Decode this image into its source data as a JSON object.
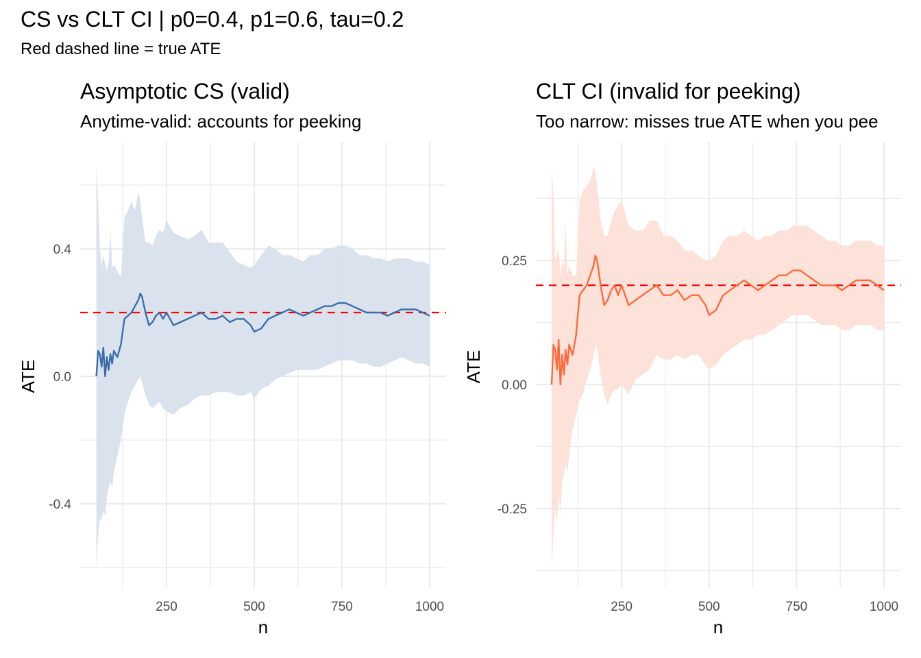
{
  "figure": {
    "title": "CS vs CLT CI | p0=0.4, p1=0.6, tau=0.2",
    "subtitle": "Red dashed line = true ATE"
  },
  "colors": {
    "cs_line": "#3b6ea8",
    "cs_band": "#d8e1ec",
    "clt_line": "#ff6a3d",
    "clt_band": "#fde0d8",
    "true_ate": "#ff0000",
    "grid": "#ebebeb"
  },
  "chart_data": [
    {
      "type": "area",
      "title": "Asymptotic CS (valid)",
      "subtitle": "Anytime-valid: accounts for peeking",
      "xlabel": "n",
      "ylabel": "ATE",
      "xlim": [
        0,
        1030
      ],
      "ylim": [
        -0.65,
        0.72
      ],
      "xticks": [
        250,
        500,
        750,
        1000
      ],
      "xtick_labels": [
        "250",
        "500",
        "750",
        "1000"
      ],
      "yticks": [
        -0.4,
        0.0,
        0.4
      ],
      "ytick_labels": [
        "-0.4",
        "0.0",
        "0.4"
      ],
      "minor_y": [
        -0.6,
        -0.2,
        0.2,
        0.6
      ],
      "minor_x": [
        125,
        375,
        625,
        875
      ],
      "true_ate": 0.2,
      "series": {
        "n": [
          50,
          55,
          60,
          65,
          70,
          75,
          80,
          85,
          90,
          95,
          100,
          110,
          120,
          130,
          140,
          150,
          160,
          170,
          175,
          180,
          190,
          200,
          210,
          220,
          230,
          240,
          250,
          270,
          290,
          310,
          330,
          350,
          370,
          390,
          410,
          430,
          450,
          470,
          490,
          500,
          520,
          540,
          560,
          580,
          600,
          620,
          640,
          660,
          680,
          700,
          720,
          740,
          760,
          780,
          800,
          820,
          840,
          860,
          880,
          900,
          920,
          940,
          960,
          980,
          1000
        ],
        "ate": [
          0.0,
          0.08,
          0.07,
          0.03,
          0.09,
          0.0,
          0.06,
          0.02,
          0.07,
          0.04,
          0.08,
          0.06,
          0.1,
          0.18,
          0.19,
          0.2,
          0.22,
          0.24,
          0.26,
          0.25,
          0.2,
          0.16,
          0.17,
          0.19,
          0.2,
          0.18,
          0.2,
          0.16,
          0.17,
          0.18,
          0.19,
          0.2,
          0.18,
          0.18,
          0.19,
          0.17,
          0.18,
          0.18,
          0.16,
          0.14,
          0.15,
          0.18,
          0.19,
          0.2,
          0.21,
          0.2,
          0.19,
          0.2,
          0.21,
          0.22,
          0.22,
          0.23,
          0.23,
          0.22,
          0.21,
          0.2,
          0.2,
          0.2,
          0.19,
          0.2,
          0.21,
          0.21,
          0.21,
          0.2,
          0.19
        ],
        "lower": [
          -0.6,
          -0.5,
          -0.45,
          -0.45,
          -0.42,
          -0.44,
          -0.38,
          -0.35,
          -0.33,
          -0.35,
          -0.3,
          -0.25,
          -0.2,
          -0.12,
          -0.08,
          -0.05,
          -0.03,
          -0.01,
          0.0,
          -0.02,
          -0.06,
          -0.09,
          -0.1,
          -0.09,
          -0.08,
          -0.1,
          -0.11,
          -0.12,
          -0.1,
          -0.09,
          -0.07,
          -0.06,
          -0.06,
          -0.05,
          -0.05,
          -0.05,
          -0.06,
          -0.06,
          -0.05,
          -0.07,
          -0.04,
          -0.03,
          -0.01,
          0.0,
          0.01,
          0.02,
          0.02,
          0.02,
          0.02,
          0.03,
          0.04,
          0.05,
          0.05,
          0.05,
          0.04,
          0.04,
          0.03,
          0.03,
          0.04,
          0.05,
          0.06,
          0.05,
          0.04,
          0.04,
          0.03
        ],
        "upper": [
          0.66,
          0.55,
          0.4,
          0.35,
          0.38,
          0.35,
          0.33,
          0.36,
          0.46,
          0.34,
          0.35,
          0.33,
          0.31,
          0.5,
          0.52,
          0.55,
          0.52,
          0.58,
          0.55,
          0.5,
          0.42,
          0.42,
          0.41,
          0.44,
          0.46,
          0.45,
          0.49,
          0.45,
          0.44,
          0.43,
          0.44,
          0.46,
          0.42,
          0.42,
          0.42,
          0.39,
          0.36,
          0.35,
          0.34,
          0.35,
          0.38,
          0.41,
          0.4,
          0.38,
          0.38,
          0.37,
          0.36,
          0.38,
          0.38,
          0.4,
          0.4,
          0.41,
          0.41,
          0.4,
          0.38,
          0.38,
          0.37,
          0.37,
          0.36,
          0.37,
          0.37,
          0.37,
          0.36,
          0.36,
          0.35
        ]
      }
    },
    {
      "type": "area",
      "title": "CLT CI (invalid for peeking)",
      "subtitle": "Too narrow: misses true ATE when you pee",
      "xlabel": "n",
      "ylabel": "ATE",
      "xlim": [
        0,
        1030
      ],
      "ylim": [
        -0.4,
        0.48
      ],
      "xticks": [
        250,
        500,
        750,
        1000
      ],
      "xtick_labels": [
        "250",
        "500",
        "750",
        "1000"
      ],
      "yticks": [
        -0.25,
        0.0,
        0.25
      ],
      "ytick_labels": [
        "-0.25",
        "0.00",
        "0.25"
      ],
      "minor_y": [
        -0.375,
        -0.125,
        0.125,
        0.375
      ],
      "minor_x": [
        125,
        375,
        625,
        875
      ],
      "true_ate": 0.2,
      "series": {
        "n": [
          50,
          55,
          60,
          65,
          70,
          75,
          80,
          85,
          90,
          95,
          100,
          110,
          120,
          130,
          140,
          150,
          160,
          170,
          175,
          180,
          190,
          200,
          210,
          220,
          230,
          240,
          250,
          270,
          290,
          310,
          330,
          350,
          370,
          390,
          410,
          430,
          450,
          470,
          490,
          500,
          520,
          540,
          560,
          580,
          600,
          620,
          640,
          660,
          680,
          700,
          720,
          740,
          760,
          780,
          800,
          820,
          840,
          860,
          880,
          900,
          920,
          940,
          960,
          980,
          1000
        ],
        "ate": [
          0.0,
          0.08,
          0.07,
          0.03,
          0.09,
          0.0,
          0.06,
          0.02,
          0.07,
          0.04,
          0.08,
          0.06,
          0.1,
          0.18,
          0.19,
          0.2,
          0.22,
          0.24,
          0.26,
          0.25,
          0.2,
          0.16,
          0.17,
          0.19,
          0.2,
          0.18,
          0.2,
          0.16,
          0.17,
          0.18,
          0.19,
          0.2,
          0.18,
          0.18,
          0.19,
          0.17,
          0.18,
          0.18,
          0.16,
          0.14,
          0.15,
          0.18,
          0.19,
          0.2,
          0.21,
          0.2,
          0.19,
          0.2,
          0.21,
          0.22,
          0.22,
          0.23,
          0.23,
          0.22,
          0.21,
          0.2,
          0.2,
          0.2,
          0.19,
          0.2,
          0.21,
          0.21,
          0.21,
          0.2,
          0.19
        ],
        "lower": [
          -0.37,
          -0.3,
          -0.25,
          -0.28,
          -0.22,
          -0.26,
          -0.2,
          -0.18,
          -0.16,
          -0.18,
          -0.14,
          -0.09,
          -0.06,
          -0.03,
          -0.02,
          0.01,
          0.03,
          0.06,
          0.08,
          0.07,
          0.02,
          -0.02,
          -0.04,
          -0.02,
          -0.01,
          -0.01,
          0.0,
          -0.02,
          0.01,
          0.02,
          0.03,
          0.06,
          0.05,
          0.05,
          0.06,
          0.05,
          0.06,
          0.06,
          0.04,
          0.03,
          0.04,
          0.06,
          0.07,
          0.08,
          0.09,
          0.09,
          0.1,
          0.1,
          0.11,
          0.12,
          0.13,
          0.14,
          0.14,
          0.14,
          0.13,
          0.12,
          0.12,
          0.12,
          0.11,
          0.11,
          0.12,
          0.12,
          0.12,
          0.11,
          0.11
        ],
        "upper": [
          0.44,
          0.38,
          0.25,
          0.26,
          0.28,
          0.22,
          0.25,
          0.24,
          0.33,
          0.22,
          0.24,
          0.22,
          0.22,
          0.37,
          0.39,
          0.4,
          0.41,
          0.44,
          0.43,
          0.4,
          0.33,
          0.3,
          0.3,
          0.33,
          0.35,
          0.36,
          0.37,
          0.32,
          0.31,
          0.31,
          0.33,
          0.33,
          0.3,
          0.3,
          0.29,
          0.27,
          0.27,
          0.26,
          0.25,
          0.25,
          0.26,
          0.29,
          0.3,
          0.3,
          0.31,
          0.3,
          0.29,
          0.3,
          0.3,
          0.31,
          0.31,
          0.32,
          0.32,
          0.32,
          0.31,
          0.3,
          0.29,
          0.29,
          0.28,
          0.28,
          0.29,
          0.29,
          0.29,
          0.28,
          0.28
        ]
      }
    }
  ]
}
